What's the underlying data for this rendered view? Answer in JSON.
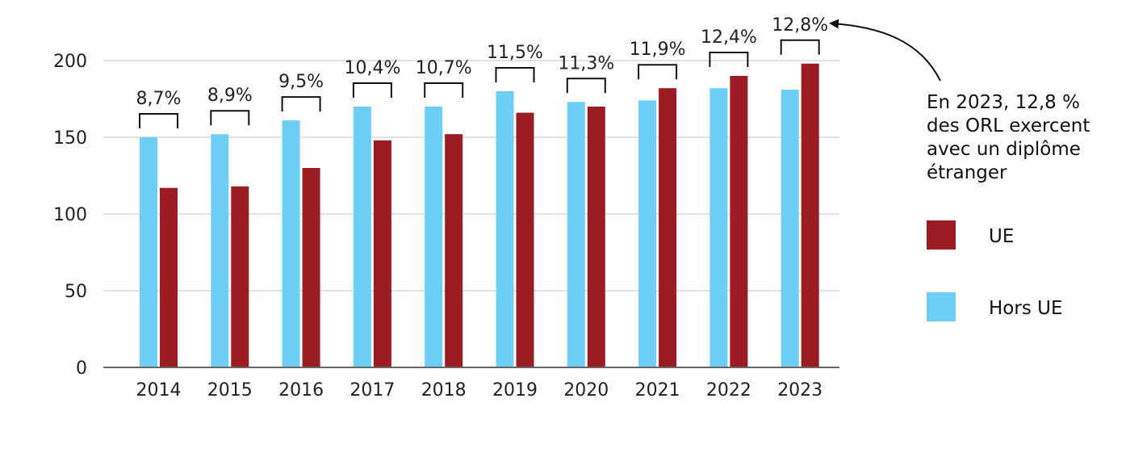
{
  "chart_data": {
    "type": "bar",
    "categories": [
      "2014",
      "2015",
      "2016",
      "2017",
      "2018",
      "2019",
      "2020",
      "2021",
      "2022",
      "2023"
    ],
    "series": [
      {
        "name": "Hors UE",
        "color": "#6ecff6",
        "values": [
          150,
          152,
          161,
          170,
          170,
          180,
          173,
          174,
          182,
          181
        ]
      },
      {
        "name": "UE",
        "color": "#9b1c22",
        "values": [
          117,
          118,
          130,
          148,
          152,
          166,
          170,
          182,
          190,
          198
        ]
      }
    ],
    "percent_labels": [
      "8,7%",
      "8,9%",
      "9,5%",
      "10,4%",
      "10,7%",
      "11,5%",
      "11,3%",
      "11,9%",
      "12,4%",
      "12,8%"
    ],
    "ylim": [
      0,
      200
    ],
    "yticks": [
      0,
      50,
      100,
      150,
      200
    ],
    "ytick_labels": [
      "0",
      "50",
      "100",
      "150",
      "200"
    ],
    "grid": true,
    "title": "",
    "xlabel": "",
    "ylabel": "",
    "legend": [
      {
        "label": "UE",
        "color": "#9b1c22"
      },
      {
        "label": "Hors UE",
        "color": "#6ecff6"
      }
    ],
    "legend_position": "right",
    "annotation": {
      "lines": [
        "En 2023, 12,8 %",
        "des ORL exercent",
        "avec un diplôme",
        "étranger"
      ],
      "points_to": "2023"
    }
  }
}
